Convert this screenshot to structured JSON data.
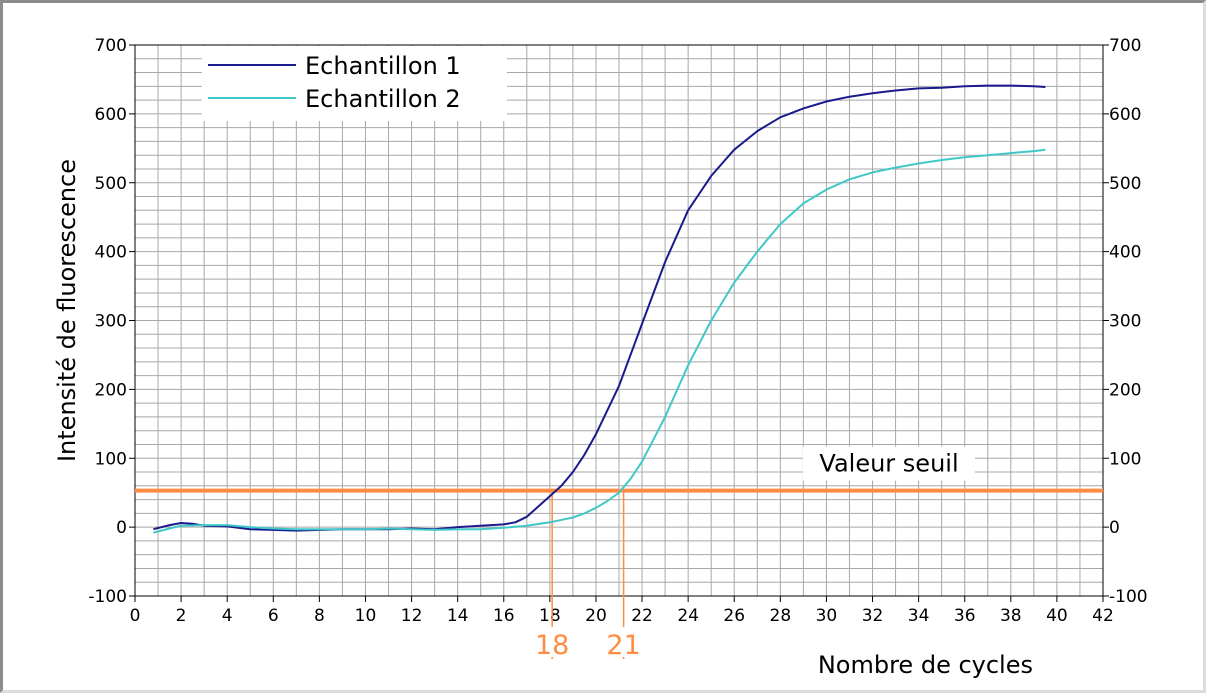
{
  "chart_data": {
    "type": "line",
    "title": "",
    "xlabel": "Nombre de cycles",
    "ylabel": "Intensité de fluorescence",
    "xlim": [
      0,
      42
    ],
    "ylim": [
      -100,
      700
    ],
    "x_ticks": [
      0,
      2,
      4,
      6,
      8,
      10,
      12,
      14,
      16,
      18,
      20,
      22,
      24,
      26,
      28,
      30,
      32,
      34,
      36,
      38,
      40,
      42
    ],
    "x_tick_labels": [
      "0",
      "2",
      "4",
      "6",
      "8",
      "10",
      "12",
      "14",
      "16",
      "18",
      "20",
      "22",
      "24",
      "26",
      "28",
      "30",
      "32",
      "34",
      "36",
      "38",
      "40",
      "42"
    ],
    "y_ticks": [
      -100,
      0,
      100,
      200,
      300,
      400,
      500,
      600,
      700
    ],
    "y_tick_labels": [
      "-100",
      "0",
      "100",
      "200",
      "300",
      "400",
      "500",
      "600",
      "700"
    ],
    "grid": true,
    "secondary_y_axis": true,
    "legend_position": "top-left",
    "series": [
      {
        "name": "Echantillon 1",
        "color": "#1a1a8c",
        "x": [
          0.8,
          1.5,
          2,
          2.5,
          3,
          4,
          5,
          6,
          7,
          8,
          9,
          10,
          11,
          12,
          13,
          14,
          15,
          16,
          16.5,
          17,
          17.5,
          18,
          18.5,
          19,
          19.5,
          20,
          21,
          22,
          23,
          24,
          25,
          26,
          27,
          28,
          29,
          30,
          31,
          32,
          33,
          34,
          35,
          36,
          37,
          38,
          39,
          39.5
        ],
        "values": [
          -3,
          3,
          6,
          5,
          2,
          1,
          -3,
          -4,
          -5,
          -4,
          -3,
          -3,
          -3,
          -2,
          -3,
          0,
          2,
          4,
          7,
          15,
          30,
          45,
          60,
          80,
          105,
          135,
          205,
          295,
          385,
          460,
          510,
          548,
          575,
          595,
          608,
          618,
          625,
          630,
          634,
          637,
          638,
          640,
          641,
          641,
          640,
          639
        ]
      },
      {
        "name": "Echantillon 2",
        "color": "#40c8c8",
        "x": [
          0.8,
          1.5,
          2,
          3,
          4,
          5,
          6,
          7,
          8,
          9,
          10,
          11,
          12,
          13,
          14,
          15,
          16,
          17,
          18,
          19,
          19.5,
          20,
          20.5,
          21,
          21.5,
          22,
          23,
          24,
          25,
          26,
          27,
          28,
          29,
          30,
          31,
          32,
          33,
          34,
          35,
          36,
          37,
          38,
          39,
          39.5
        ],
        "values": [
          -8,
          -2,
          2,
          3,
          3,
          0,
          -2,
          -3,
          -3,
          -3,
          -3,
          -2,
          -3,
          -4,
          -3,
          -3,
          -1,
          2,
          7,
          14,
          20,
          28,
          38,
          50,
          70,
          95,
          160,
          235,
          300,
          355,
          400,
          440,
          470,
          490,
          505,
          515,
          522,
          528,
          533,
          537,
          540,
          543,
          546,
          548
        ]
      }
    ],
    "threshold": {
      "label": "Valeur seuil",
      "value": 53,
      "color": "#ff8c42"
    },
    "threshold_crossings": [
      {
        "x": 18.1,
        "label": "18"
      },
      {
        "x": 21.2,
        "label": "21"
      }
    ]
  }
}
